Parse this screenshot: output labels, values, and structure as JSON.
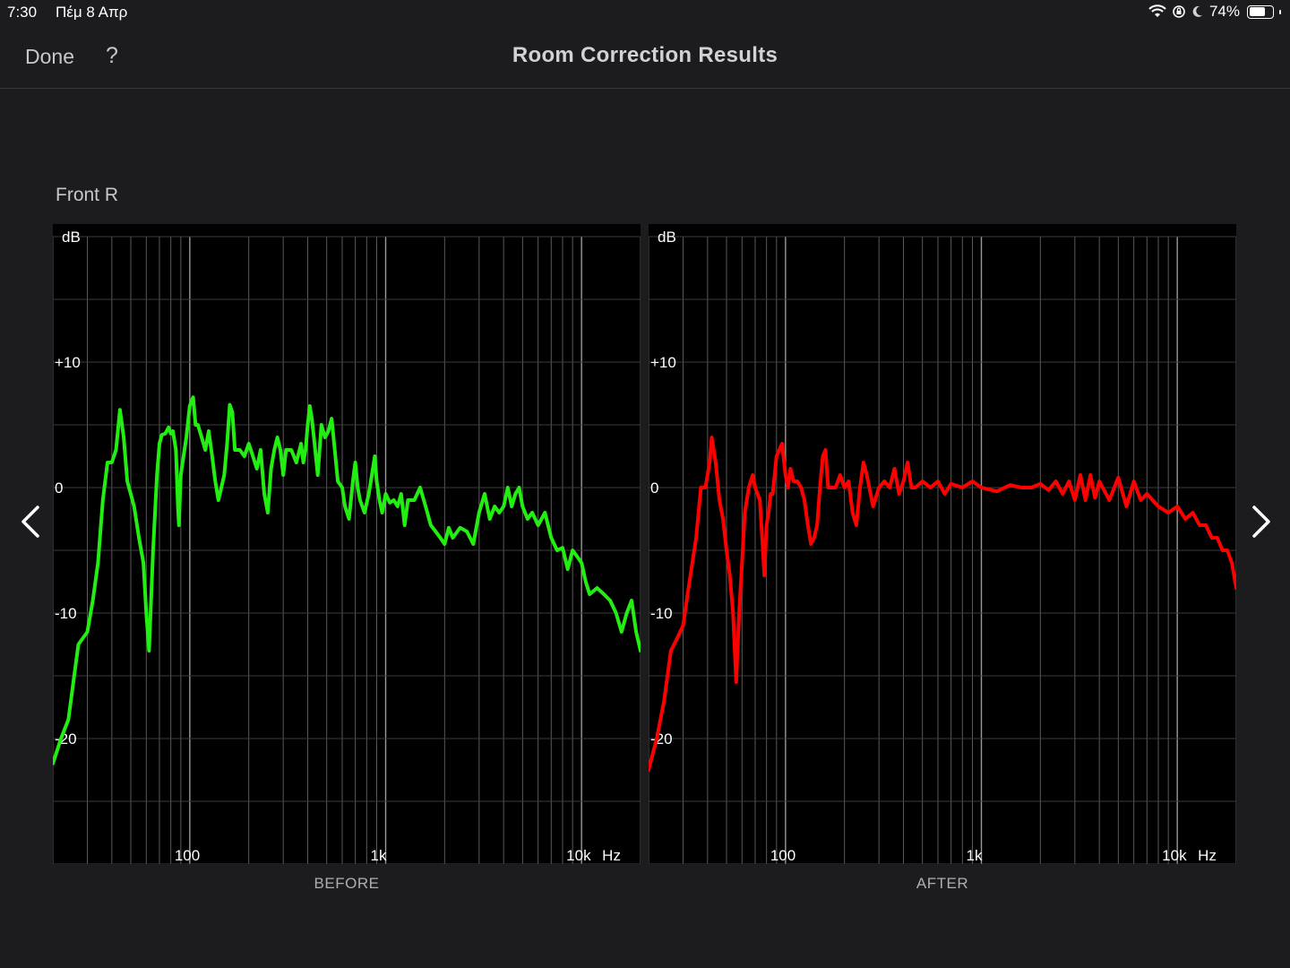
{
  "status_bar": {
    "time": "7:30",
    "date": "Πέμ 8 Απρ",
    "battery": "74%",
    "battery_level": 0.74
  },
  "header": {
    "done_label": "Done",
    "help_label": "?",
    "title": "Room Correction Results"
  },
  "channel": "Front R",
  "nav": {
    "prev_icon": "chevron-left-icon",
    "next_icon": "chevron-right-icon"
  },
  "colors": {
    "before_line": "#22ee11",
    "after_line": "#ff0000",
    "background": "#1c1c1e",
    "plot_bg": "#000000"
  },
  "chart_data": [
    {
      "type": "line",
      "caption": "BEFORE",
      "ylabel": "dB",
      "xunit": "Hz",
      "xscale": "log",
      "xlim": [
        20,
        20000
      ],
      "ylim": [
        -30,
        20
      ],
      "yticks": [
        10,
        0,
        -10,
        -20
      ],
      "ytick_labels": [
        "+10",
        "0",
        "-10",
        "-20"
      ],
      "xticks": [
        100,
        1000,
        10000
      ],
      "xtick_labels": [
        "100",
        "1k",
        "10k"
      ],
      "grid": true,
      "series": [
        {
          "color": "#22ee11",
          "points": [
            [
              20,
              -22
            ],
            [
              22,
              -20
            ],
            [
              24,
              -18.5
            ],
            [
              27,
              -12.5
            ],
            [
              30,
              -11.5
            ],
            [
              32,
              -9
            ],
            [
              34,
              -6
            ],
            [
              36,
              -1
            ],
            [
              38,
              2
            ],
            [
              40,
              2
            ],
            [
              42,
              3
            ],
            [
              44,
              6.2
            ],
            [
              46,
              4
            ],
            [
              48,
              0.5
            ],
            [
              52,
              -1.5
            ],
            [
              55,
              -4
            ],
            [
              58,
              -6
            ],
            [
              60,
              -10
            ],
            [
              62,
              -13
            ],
            [
              65,
              -5
            ],
            [
              68,
              1
            ],
            [
              70,
              3.5
            ],
            [
              72,
              4.2
            ],
            [
              75,
              4.3
            ],
            [
              78,
              4.8
            ],
            [
              80,
              4.3
            ],
            [
              82,
              4.5
            ],
            [
              85,
              3
            ],
            [
              87,
              -1.5
            ],
            [
              88,
              -3
            ],
            [
              90,
              1
            ],
            [
              93,
              2.5
            ],
            [
              96,
              4
            ],
            [
              100,
              6.5
            ],
            [
              104,
              7.2
            ],
            [
              107,
              5
            ],
            [
              110,
              5
            ],
            [
              115,
              4
            ],
            [
              120,
              3
            ],
            [
              125,
              4.5
            ],
            [
              130,
              2.5
            ],
            [
              135,
              0.5
            ],
            [
              140,
              -1
            ],
            [
              145,
              0
            ],
            [
              150,
              1
            ],
            [
              155,
              3.5
            ],
            [
              160,
              6.6
            ],
            [
              165,
              6
            ],
            [
              170,
              3
            ],
            [
              180,
              3
            ],
            [
              190,
              2.5
            ],
            [
              200,
              3.5
            ],
            [
              210,
              2.5
            ],
            [
              220,
              1.5
            ],
            [
              230,
              3
            ],
            [
              240,
              -0.5
            ],
            [
              250,
              -2
            ],
            [
              260,
              1.5
            ],
            [
              270,
              3
            ],
            [
              280,
              4
            ],
            [
              290,
              3
            ],
            [
              300,
              1
            ],
            [
              310,
              3
            ],
            [
              330,
              3
            ],
            [
              350,
              2
            ],
            [
              370,
              3.5
            ],
            [
              380,
              2
            ],
            [
              390,
              3
            ],
            [
              400,
              5
            ],
            [
              410,
              6.5
            ],
            [
              420,
              5.5
            ],
            [
              430,
              4
            ],
            [
              450,
              1
            ],
            [
              470,
              5
            ],
            [
              490,
              4
            ],
            [
              510,
              4.5
            ],
            [
              530,
              5.5
            ],
            [
              550,
              3
            ],
            [
              570,
              0.5
            ],
            [
              600,
              0
            ],
            [
              620,
              -1.5
            ],
            [
              650,
              -2.5
            ],
            [
              680,
              0.5
            ],
            [
              700,
              2
            ],
            [
              720,
              0
            ],
            [
              740,
              -1
            ],
            [
              780,
              -2
            ],
            [
              820,
              -0.5
            ],
            [
              850,
              1
            ],
            [
              880,
              2.5
            ],
            [
              900,
              0.5
            ],
            [
              930,
              -1
            ],
            [
              960,
              -2
            ],
            [
              1000,
              -0.5
            ],
            [
              1050,
              -1.2
            ],
            [
              1100,
              -1
            ],
            [
              1150,
              -1.5
            ],
            [
              1200,
              -0.5
            ],
            [
              1250,
              -3
            ],
            [
              1300,
              -1
            ],
            [
              1400,
              -1
            ],
            [
              1500,
              0
            ],
            [
              1600,
              -1.5
            ],
            [
              1700,
              -3
            ],
            [
              1800,
              -3.5
            ],
            [
              1900,
              -4
            ],
            [
              2000,
              -4.5
            ],
            [
              2100,
              -3.2
            ],
            [
              2200,
              -4
            ],
            [
              2400,
              -3.2
            ],
            [
              2600,
              -3.5
            ],
            [
              2800,
              -4.5
            ],
            [
              3000,
              -2
            ],
            [
              3200,
              -0.5
            ],
            [
              3400,
              -2.5
            ],
            [
              3600,
              -1.5
            ],
            [
              3800,
              -2
            ],
            [
              4000,
              -1.5
            ],
            [
              4200,
              0
            ],
            [
              4400,
              -1.5
            ],
            [
              4600,
              -0.5
            ],
            [
              4800,
              0
            ],
            [
              5000,
              -1.5
            ],
            [
              5300,
              -2.5
            ],
            [
              5600,
              -2
            ],
            [
              6000,
              -3
            ],
            [
              6500,
              -2
            ],
            [
              7000,
              -4
            ],
            [
              7500,
              -5
            ],
            [
              8000,
              -4.8
            ],
            [
              8500,
              -6.5
            ],
            [
              9000,
              -5
            ],
            [
              9500,
              -5.5
            ],
            [
              10000,
              -6
            ],
            [
              10500,
              -7.5
            ],
            [
              11000,
              -8.5
            ],
            [
              12000,
              -8
            ],
            [
              13000,
              -8.5
            ],
            [
              14000,
              -9
            ],
            [
              15000,
              -10
            ],
            [
              16000,
              -11.5
            ],
            [
              17000,
              -10
            ],
            [
              18000,
              -9
            ],
            [
              19000,
              -11.5
            ],
            [
              20000,
              -13
            ]
          ]
        }
      ]
    },
    {
      "type": "line",
      "caption": "AFTER",
      "ylabel": "dB",
      "xunit": "Hz",
      "xscale": "log",
      "xlim": [
        20,
        20000
      ],
      "ylim": [
        -30,
        20
      ],
      "yticks": [
        10,
        0,
        -10,
        -20
      ],
      "ytick_labels": [
        "+10",
        "0",
        "-10",
        "-20"
      ],
      "xticks": [
        100,
        1000,
        10000
      ],
      "xtick_labels": [
        "100",
        "1k",
        "10k"
      ],
      "grid": true,
      "series": [
        {
          "color": "#ff0000",
          "points": [
            [
              20,
              -22.5
            ],
            [
              22,
              -20
            ],
            [
              24,
              -17
            ],
            [
              26,
              -13
            ],
            [
              28,
              -12
            ],
            [
              30,
              -11
            ],
            [
              32,
              -8
            ],
            [
              35,
              -4
            ],
            [
              37,
              0
            ],
            [
              39,
              0
            ],
            [
              41,
              2
            ],
            [
              42,
              4
            ],
            [
              44,
              2
            ],
            [
              46,
              -1
            ],
            [
              48,
              -2.5
            ],
            [
              50,
              -5
            ],
            [
              52,
              -7
            ],
            [
              54,
              -10
            ],
            [
              56,
              -15.5
            ],
            [
              58,
              -10
            ],
            [
              60,
              -6
            ],
            [
              62,
              -2
            ],
            [
              65,
              0
            ],
            [
              68,
              1
            ],
            [
              70,
              0
            ],
            [
              72,
              -0.5
            ],
            [
              74,
              -1
            ],
            [
              76,
              -4
            ],
            [
              78,
              -7
            ],
            [
              80,
              -3
            ],
            [
              82,
              -2
            ],
            [
              84,
              -0.5
            ],
            [
              86,
              -0.5
            ],
            [
              88,
              1
            ],
            [
              90,
              2.5
            ],
            [
              93,
              3
            ],
            [
              96,
              3.5
            ],
            [
              100,
              1
            ],
            [
              103,
              0
            ],
            [
              106,
              1.5
            ],
            [
              110,
              0.5
            ],
            [
              115,
              0.5
            ],
            [
              120,
              0
            ],
            [
              125,
              -1
            ],
            [
              130,
              -3
            ],
            [
              135,
              -4.5
            ],
            [
              140,
              -4
            ],
            [
              145,
              -3
            ],
            [
              150,
              0
            ],
            [
              155,
              2.5
            ],
            [
              160,
              3
            ],
            [
              165,
              0
            ],
            [
              170,
              0
            ],
            [
              180,
              0
            ],
            [
              190,
              1
            ],
            [
              200,
              0
            ],
            [
              210,
              0.5
            ],
            [
              220,
              -2
            ],
            [
              230,
              -3
            ],
            [
              240,
              0
            ],
            [
              250,
              2
            ],
            [
              260,
              1
            ],
            [
              280,
              -1.5
            ],
            [
              300,
              0
            ],
            [
              320,
              0.5
            ],
            [
              340,
              0
            ],
            [
              360,
              1.5
            ],
            [
              380,
              -0.5
            ],
            [
              400,
              0.5
            ],
            [
              420,
              2
            ],
            [
              440,
              0
            ],
            [
              460,
              0
            ],
            [
              500,
              0.5
            ],
            [
              550,
              0
            ],
            [
              600,
              0.5
            ],
            [
              650,
              -0.5
            ],
            [
              700,
              0.3
            ],
            [
              800,
              0
            ],
            [
              900,
              0.5
            ],
            [
              1000,
              0
            ],
            [
              1200,
              -0.3
            ],
            [
              1400,
              0.2
            ],
            [
              1600,
              0
            ],
            [
              1800,
              0
            ],
            [
              2000,
              0.3
            ],
            [
              2200,
              -0.2
            ],
            [
              2400,
              0.5
            ],
            [
              2600,
              -0.5
            ],
            [
              2800,
              0.5
            ],
            [
              3000,
              -1
            ],
            [
              3200,
              1
            ],
            [
              3400,
              -1
            ],
            [
              3600,
              1
            ],
            [
              3800,
              -0.8
            ],
            [
              4000,
              0.5
            ],
            [
              4500,
              -1
            ],
            [
              5000,
              0.8
            ],
            [
              5500,
              -1.5
            ],
            [
              6000,
              0.5
            ],
            [
              6500,
              -1
            ],
            [
              7000,
              -0.5
            ],
            [
              8000,
              -1.5
            ],
            [
              9000,
              -2
            ],
            [
              10000,
              -1.5
            ],
            [
              11000,
              -2.5
            ],
            [
              12000,
              -2
            ],
            [
              13000,
              -3
            ],
            [
              14000,
              -3
            ],
            [
              15000,
              -4
            ],
            [
              16000,
              -4
            ],
            [
              17000,
              -5
            ],
            [
              18000,
              -5
            ],
            [
              19000,
              -6
            ],
            [
              20000,
              -8
            ]
          ]
        }
      ]
    }
  ]
}
